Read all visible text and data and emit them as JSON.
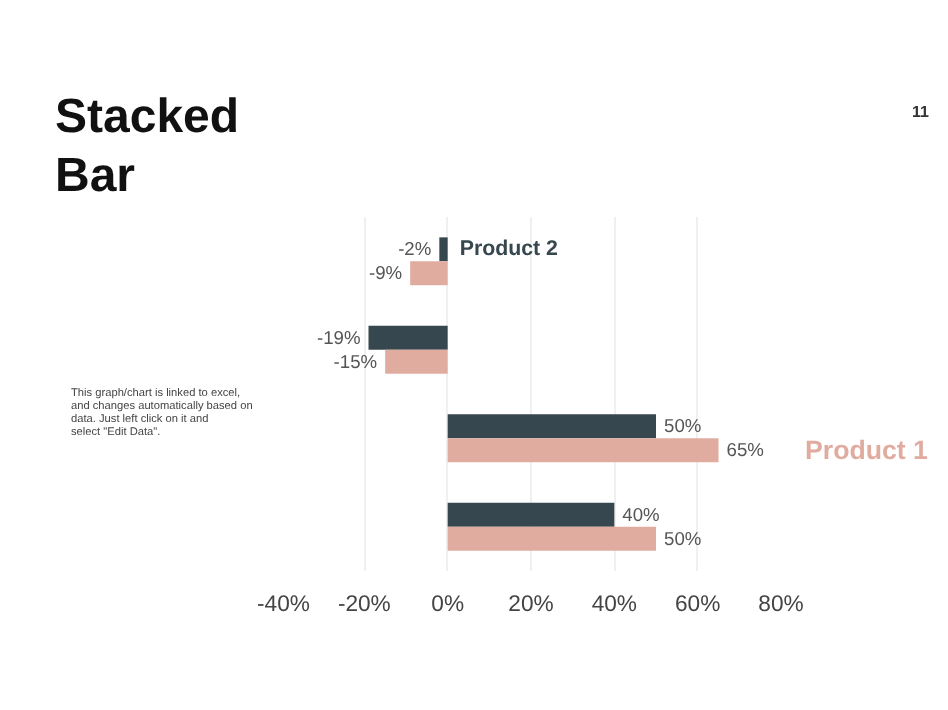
{
  "chart_data": {
    "type": "bar",
    "orientation": "horizontal",
    "title": "Stacked Bar",
    "categories": [
      null,
      null,
      null,
      null
    ],
    "series": [
      {
        "name": "Product 2",
        "color": "#37474f",
        "values": [
          -2,
          -19,
          50,
          40
        ],
        "value_labels": [
          "-2%",
          "-19%",
          "50%",
          "40%"
        ]
      },
      {
        "name": "Product 1",
        "color": "#e0aca0",
        "values": [
          -9,
          -15,
          65,
          50
        ],
        "value_labels": [
          "-9%",
          "-15%",
          "65%",
          "50%"
        ]
      }
    ],
    "xlim": [
      -40,
      80
    ],
    "xticks": [
      {
        "value": -40,
        "label": "-40%"
      },
      {
        "value": -20,
        "label": "-20%"
      },
      {
        "value": 0,
        "label": "0%"
      },
      {
        "value": 20,
        "label": "20%"
      },
      {
        "value": 40,
        "label": "40%"
      },
      {
        "value": 60,
        "label": "60%"
      },
      {
        "value": 80,
        "label": "80%"
      }
    ],
    "grid": "x",
    "legend": false,
    "annotations": [
      "This graph/chart is linked to excel, and changes automatically based on data. Just left click on it and select \"Edit Data\".",
      "11"
    ]
  }
}
